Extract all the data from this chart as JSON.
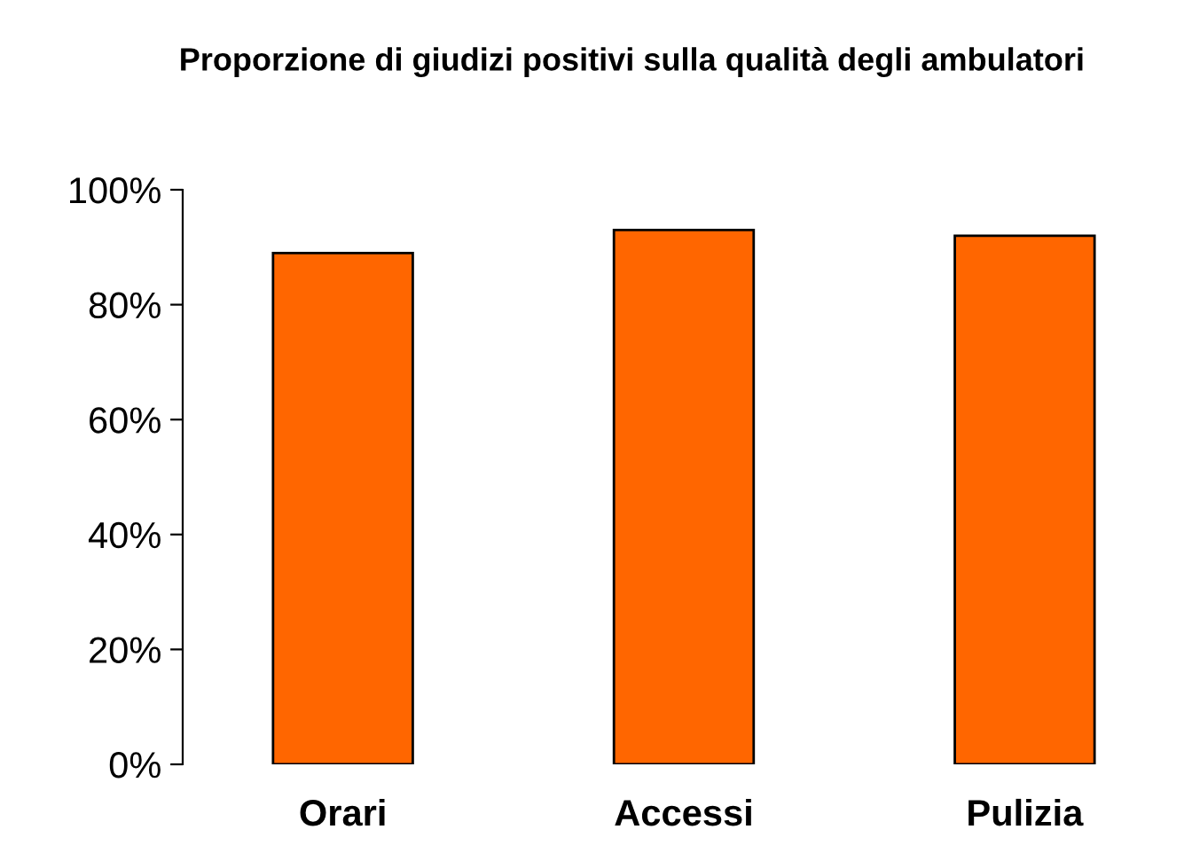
{
  "chart_data": {
    "type": "bar",
    "title": "Proporzione di giudizi positivi sulla qualità degli ambulatori",
    "categories": [
      "Orari",
      "Accessi",
      "Pulizia"
    ],
    "values": [
      89,
      93,
      92
    ],
    "color": "#ff6600",
    "ylim": [
      0,
      100
    ],
    "yticks": [
      {
        "value": 0,
        "label": "0%"
      },
      {
        "value": 20,
        "label": "20%"
      },
      {
        "value": 40,
        "label": "40%"
      },
      {
        "value": 60,
        "label": "60%"
      },
      {
        "value": 80,
        "label": "80%"
      },
      {
        "value": 100,
        "label": "100%"
      }
    ],
    "grid": false,
    "legend": false
  }
}
